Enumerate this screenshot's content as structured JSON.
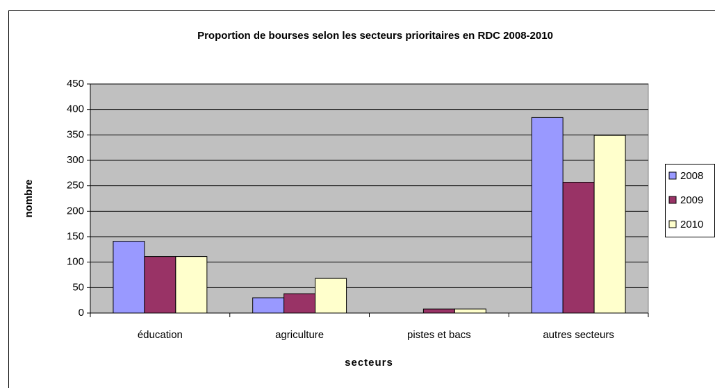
{
  "chart_data": {
    "type": "bar",
    "title": "Proportion de bourses selon les secteurs prioritaires en RDC 2008-2010",
    "xlabel": "secteurs",
    "ylabel": "nombre",
    "categories": [
      "éducation",
      "agriculture",
      "pistes et bacs",
      "autres secteurs"
    ],
    "series": [
      {
        "name": "2008",
        "color": "#9999ff",
        "values": [
          141,
          30,
          0,
          384
        ]
      },
      {
        "name": "2009",
        "color": "#993366",
        "values": [
          111,
          38,
          8,
          257
        ]
      },
      {
        "name": "2010",
        "color": "#ffffcc",
        "values": [
          111,
          68,
          8,
          349
        ]
      }
    ],
    "ylim": [
      0,
      450
    ],
    "yticks": [
      0,
      50,
      100,
      150,
      200,
      250,
      300,
      350,
      400,
      450
    ],
    "grid": true,
    "legend": "right",
    "plot_background": "#c0c0c0"
  }
}
